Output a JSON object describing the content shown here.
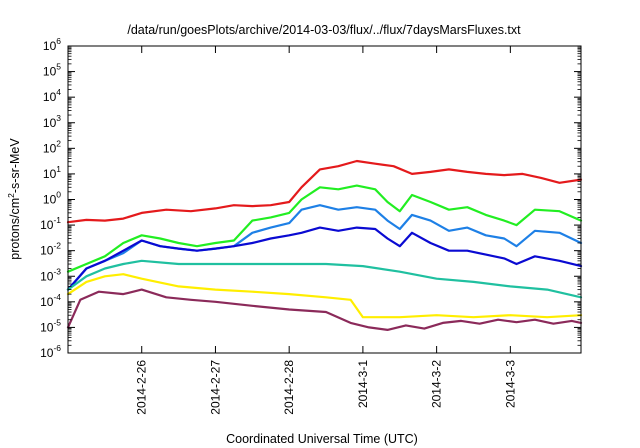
{
  "chart_data": {
    "type": "line",
    "title": "/data/run/goesPlots/archive/2014-03-03/flux/../flux/7daysMarsFluxes.txt",
    "xlabel": "Coordinated Universal Time (UTC)",
    "ylabel_parts": [
      "protons/cm",
      "2",
      "-s-sr-MeV"
    ],
    "y_scale": "log",
    "ylim": [
      1e-06,
      1000000.0
    ],
    "y_ticks": [
      {
        "exp": "-6",
        "v": 1e-06
      },
      {
        "exp": "-5",
        "v": 1e-05
      },
      {
        "exp": "-4",
        "v": 0.0001
      },
      {
        "exp": "-3",
        "v": 0.001
      },
      {
        "exp": "-2",
        "v": 0.01
      },
      {
        "exp": "-1",
        "v": 0.1
      },
      {
        "exp": "0",
        "v": 1
      },
      {
        "exp": "1",
        "v": 10
      },
      {
        "exp": "2",
        "v": 100
      },
      {
        "exp": "3",
        "v": 1000
      },
      {
        "exp": "4",
        "v": 10000
      },
      {
        "exp": "5",
        "v": 100000
      },
      {
        "exp": "6",
        "v": 1000000
      }
    ],
    "x_start": "2014-02-25T00:00",
    "x_end": "2014-03-03T23:00",
    "x_ticks": [
      "2014-2-26",
      "2014-2-27",
      "2014-2-28",
      "2014-3-1",
      "2014-3-2",
      "2014-3-3"
    ],
    "x_tick_dates": [
      "2014-02-26T00:00",
      "2014-02-27T00:00",
      "2014-02-28T00:00",
      "2014-03-01T00:00",
      "2014-03-02T00:00",
      "2014-03-03T00:00"
    ],
    "grid": false,
    "legend": "none",
    "series": [
      {
        "color": "#e41a1c",
        "x": [
          "2014-02-25T00:00",
          "2014-02-25T06:00",
          "2014-02-25T12:00",
          "2014-02-25T18:00",
          "2014-02-26T00:00",
          "2014-02-26T08:00",
          "2014-02-26T16:00",
          "2014-02-27T00:00",
          "2014-02-27T06:00",
          "2014-02-27T12:00",
          "2014-02-27T18:00",
          "2014-02-28T00:00",
          "2014-02-28T04:00",
          "2014-02-28T10:00",
          "2014-02-28T16:00",
          "2014-02-28T22:00",
          "2014-03-01T04:00",
          "2014-03-01T10:00",
          "2014-03-01T16:00",
          "2014-03-01T22:00",
          "2014-03-02T04:00",
          "2014-03-02T10:00",
          "2014-03-02T16:00",
          "2014-03-02T22:00",
          "2014-03-03T04:00",
          "2014-03-03T10:00",
          "2014-03-03T16:00",
          "2014-03-03T23:00"
        ],
        "y": [
          0.13,
          0.16,
          0.15,
          0.18,
          0.3,
          0.4,
          0.35,
          0.45,
          0.6,
          0.55,
          0.6,
          0.8,
          3,
          15,
          20,
          32,
          25,
          20,
          10,
          12,
          15,
          12,
          10,
          9,
          10,
          7,
          4.5,
          6
        ]
      },
      {
        "color": "#22ee22",
        "x": [
          "2014-02-25T00:00",
          "2014-02-25T06:00",
          "2014-02-25T12:00",
          "2014-02-25T18:00",
          "2014-02-26T00:00",
          "2014-02-26T06:00",
          "2014-02-26T12:00",
          "2014-02-26T18:00",
          "2014-02-27T00:00",
          "2014-02-27T06:00",
          "2014-02-27T12:00",
          "2014-02-27T18:00",
          "2014-02-28T00:00",
          "2014-02-28T04:00",
          "2014-02-28T10:00",
          "2014-02-28T16:00",
          "2014-02-28T22:00",
          "2014-03-01T04:00",
          "2014-03-01T08:00",
          "2014-03-01T12:00",
          "2014-03-01T16:00",
          "2014-03-01T22:00",
          "2014-03-02T04:00",
          "2014-03-02T10:00",
          "2014-03-02T16:00",
          "2014-03-02T22:00",
          "2014-03-03T02:00",
          "2014-03-03T08:00",
          "2014-03-03T16:00",
          "2014-03-03T23:00"
        ],
        "y": [
          0.0015,
          0.003,
          0.006,
          0.02,
          0.04,
          0.03,
          0.02,
          0.015,
          0.02,
          0.025,
          0.15,
          0.2,
          0.3,
          1,
          3,
          2.5,
          3.5,
          2.5,
          0.8,
          0.35,
          1.5,
          0.8,
          0.4,
          0.5,
          0.25,
          0.15,
          0.1,
          0.4,
          0.35,
          0.15
        ]
      },
      {
        "color": "#1e80e6",
        "x": [
          "2014-02-25T00:00",
          "2014-02-25T06:00",
          "2014-02-25T12:00",
          "2014-02-25T18:00",
          "2014-02-26T00:00",
          "2014-02-26T06:00",
          "2014-02-26T12:00",
          "2014-02-26T18:00",
          "2014-02-27T00:00",
          "2014-02-27T06:00",
          "2014-02-27T12:00",
          "2014-02-27T18:00",
          "2014-02-28T00:00",
          "2014-02-28T04:00",
          "2014-02-28T10:00",
          "2014-02-28T16:00",
          "2014-02-28T22:00",
          "2014-03-01T04:00",
          "2014-03-01T08:00",
          "2014-03-01T12:00",
          "2014-03-01T16:00",
          "2014-03-01T22:00",
          "2014-03-02T04:00",
          "2014-03-02T10:00",
          "2014-03-02T16:00",
          "2014-03-02T22:00",
          "2014-03-03T02:00",
          "2014-03-03T08:00",
          "2014-03-03T16:00",
          "2014-03-03T23:00"
        ],
        "y": [
          0.0003,
          0.002,
          0.004,
          0.008,
          0.025,
          0.015,
          0.012,
          0.01,
          0.012,
          0.015,
          0.05,
          0.08,
          0.12,
          0.4,
          0.6,
          0.4,
          0.5,
          0.4,
          0.15,
          0.07,
          0.25,
          0.15,
          0.06,
          0.08,
          0.04,
          0.03,
          0.015,
          0.06,
          0.05,
          0.02
        ]
      },
      {
        "color": "#0a0ad2",
        "x": [
          "2014-02-25T00:00",
          "2014-02-25T06:00",
          "2014-02-25T12:00",
          "2014-02-25T18:00",
          "2014-02-26T00:00",
          "2014-02-26T06:00",
          "2014-02-26T12:00",
          "2014-02-26T18:00",
          "2014-02-27T00:00",
          "2014-02-27T06:00",
          "2014-02-27T12:00",
          "2014-02-27T18:00",
          "2014-02-28T00:00",
          "2014-02-28T04:00",
          "2014-02-28T10:00",
          "2014-02-28T16:00",
          "2014-02-28T22:00",
          "2014-03-01T04:00",
          "2014-03-01T08:00",
          "2014-03-01T12:00",
          "2014-03-01T16:00",
          "2014-03-01T22:00",
          "2014-03-02T04:00",
          "2014-03-02T10:00",
          "2014-03-02T16:00",
          "2014-03-02T22:00",
          "2014-03-03T02:00",
          "2014-03-03T08:00",
          "2014-03-03T16:00",
          "2014-03-03T23:00"
        ],
        "y": [
          0.0003,
          0.002,
          0.004,
          0.01,
          0.025,
          0.015,
          0.012,
          0.01,
          0.012,
          0.015,
          0.02,
          0.03,
          0.04,
          0.05,
          0.08,
          0.06,
          0.08,
          0.07,
          0.03,
          0.015,
          0.05,
          0.02,
          0.01,
          0.01,
          0.007,
          0.005,
          0.003,
          0.006,
          0.004,
          0.0025
        ]
      },
      {
        "color": "#20c0a0",
        "x": [
          "2014-02-25T00:00",
          "2014-02-25T06:00",
          "2014-02-25T12:00",
          "2014-02-25T18:00",
          "2014-02-26T00:00",
          "2014-02-26T12:00",
          "2014-02-27T00:00",
          "2014-02-27T12:00",
          "2014-02-28T00:00",
          "2014-02-28T12:00",
          "2014-03-01T00:00",
          "2014-03-01T12:00",
          "2014-03-02T00:00",
          "2014-03-02T12:00",
          "2014-03-03T00:00",
          "2014-03-03T12:00",
          "2014-03-03T23:00"
        ],
        "y": [
          0.0003,
          0.001,
          0.002,
          0.003,
          0.004,
          0.003,
          0.003,
          0.003,
          0.003,
          0.003,
          0.0025,
          0.0015,
          0.0008,
          0.0006,
          0.0004,
          0.0003,
          0.00015
        ]
      },
      {
        "color": "#ffee00",
        "x": [
          "2014-02-25T00:00",
          "2014-02-25T06:00",
          "2014-02-25T12:00",
          "2014-02-25T18:00",
          "2014-02-26T00:00",
          "2014-02-26T12:00",
          "2014-02-27T00:00",
          "2014-02-27T12:00",
          "2014-02-28T00:00",
          "2014-02-28T12:00",
          "2014-02-28T20:00",
          "2014-03-01T00:00",
          "2014-03-01T12:00",
          "2014-03-02T00:00",
          "2014-03-02T12:00",
          "2014-03-03T00:00",
          "2014-03-03T12:00",
          "2014-03-03T23:00"
        ],
        "y": [
          0.0002,
          0.0006,
          0.001,
          0.0012,
          0.0008,
          0.0004,
          0.0003,
          0.00025,
          0.0002,
          0.00015,
          0.00012,
          2.5e-05,
          2.5e-05,
          3e-05,
          2.5e-05,
          3e-05,
          2.5e-05,
          3e-05
        ]
      },
      {
        "color": "#8b2a5a",
        "x": [
          "2014-02-25T00:00",
          "2014-02-25T04:00",
          "2014-02-25T10:00",
          "2014-02-25T18:00",
          "2014-02-26T00:00",
          "2014-02-26T08:00",
          "2014-02-26T16:00",
          "2014-02-27T00:00",
          "2014-02-27T12:00",
          "2014-02-28T00:00",
          "2014-02-28T12:00",
          "2014-02-28T20:00",
          "2014-03-01T02:00",
          "2014-03-01T08:00",
          "2014-03-01T14:00",
          "2014-03-01T20:00",
          "2014-03-02T02:00",
          "2014-03-02T08:00",
          "2014-03-02T14:00",
          "2014-03-02T20:00",
          "2014-03-03T02:00",
          "2014-03-03T08:00",
          "2014-03-03T14:00",
          "2014-03-03T20:00",
          "2014-03-03T23:00"
        ],
        "y": [
          1e-05,
          0.00012,
          0.00025,
          0.0002,
          0.0003,
          0.00015,
          0.00012,
          0.0001,
          7e-05,
          5e-05,
          4e-05,
          1.5e-05,
          1e-05,
          8e-06,
          1.2e-05,
          9e-06,
          1.5e-05,
          1.8e-05,
          1.4e-05,
          2e-05,
          1.6e-05,
          2e-05,
          1.4e-05,
          1.8e-05,
          1.5e-05
        ]
      }
    ]
  }
}
